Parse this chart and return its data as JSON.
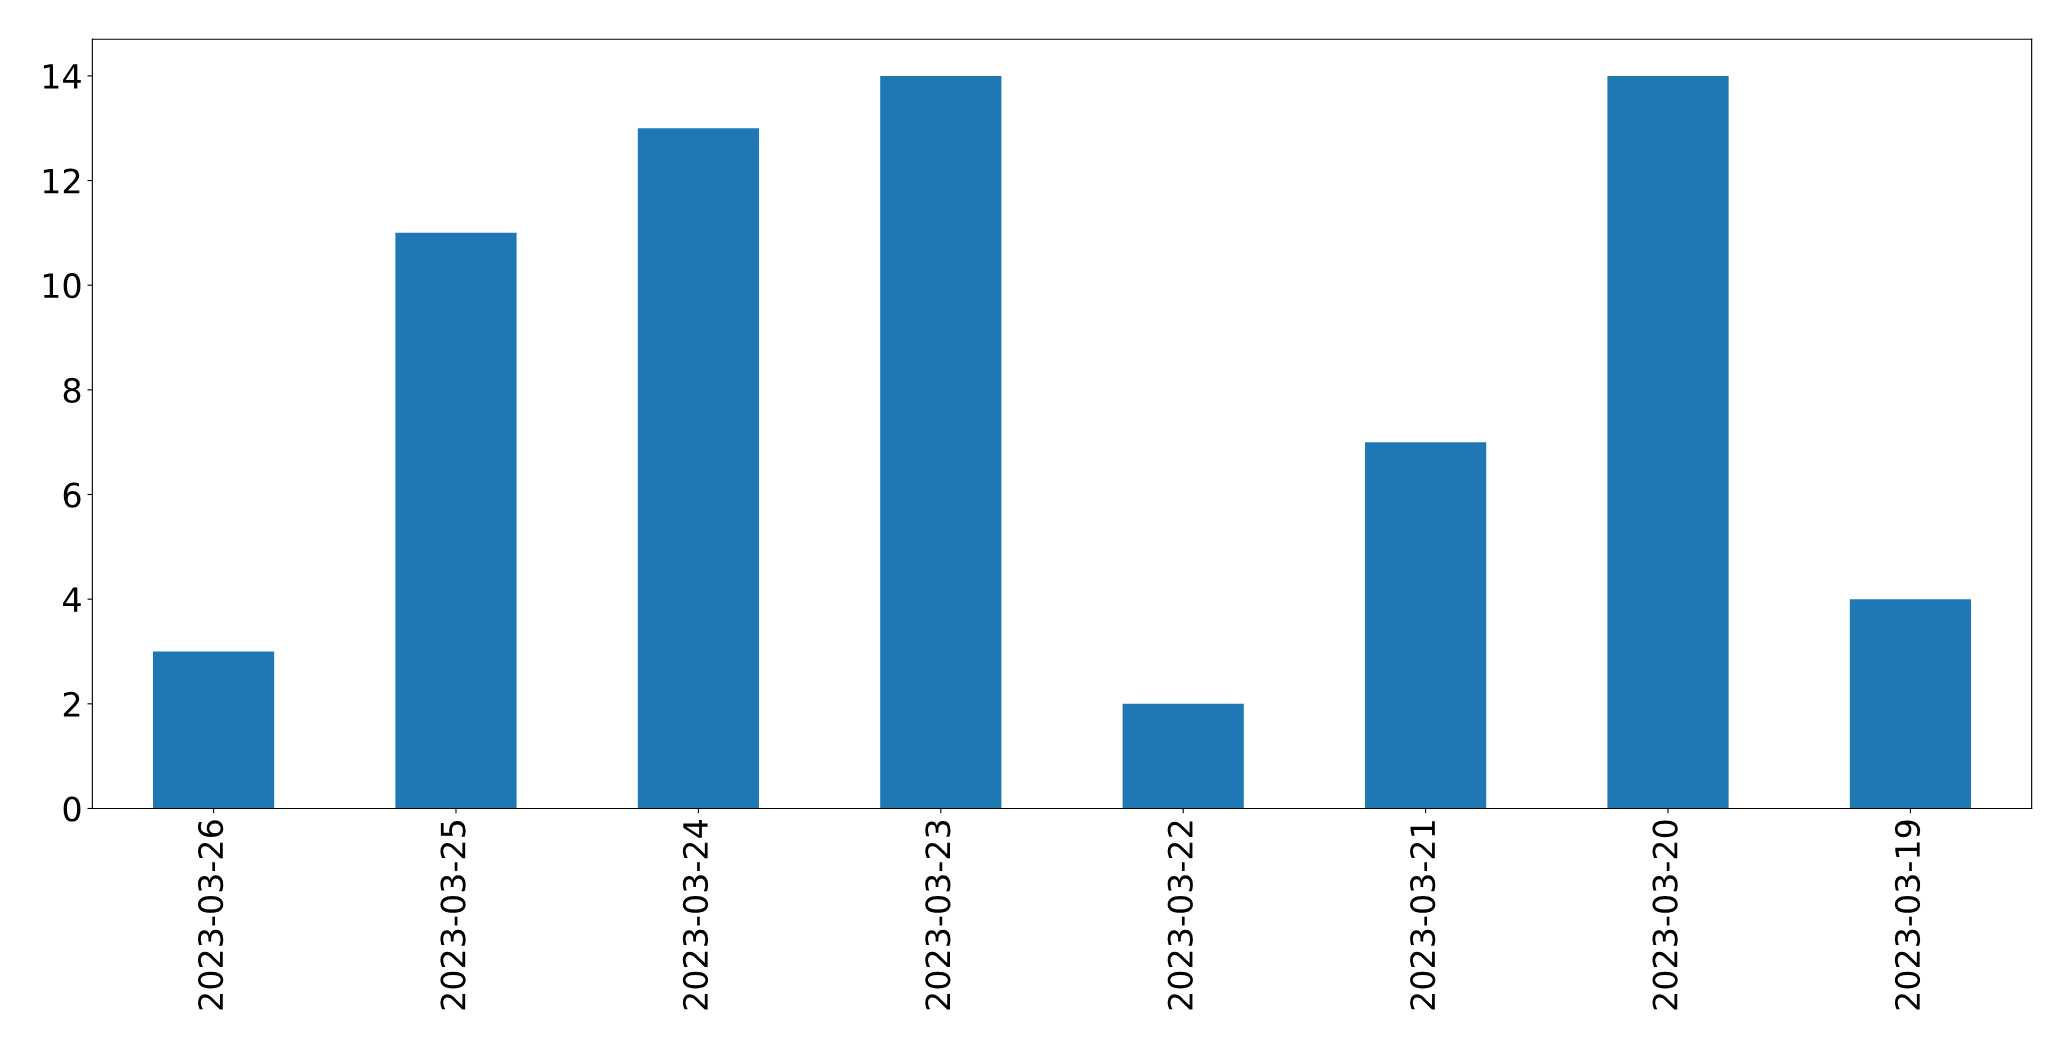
{
  "chart_data": {
    "type": "bar",
    "categories": [
      "2023-03-26",
      "2023-03-25",
      "2023-03-24",
      "2023-03-23",
      "2023-03-22",
      "2023-03-21",
      "2023-03-20",
      "2023-03-19"
    ],
    "values": [
      3,
      11,
      13,
      14,
      2,
      7,
      14,
      4
    ],
    "color": "#1f77b4",
    "ylim": [
      0,
      14.7
    ],
    "yticks": [
      0,
      2,
      4,
      6,
      8,
      10,
      12,
      14
    ],
    "grid": false,
    "legend": false
  }
}
